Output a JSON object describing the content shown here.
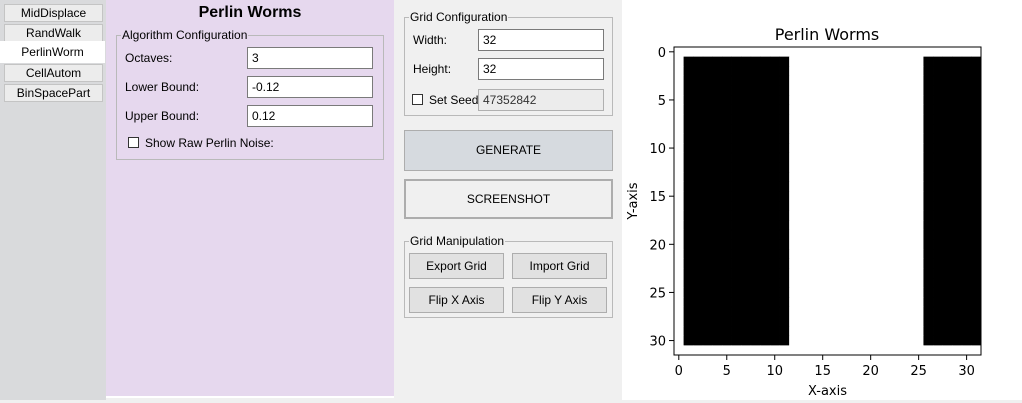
{
  "tabs": [
    {
      "label": "MidDisplace",
      "active": false
    },
    {
      "label": "RandWalk",
      "active": false
    },
    {
      "label": "PerlinWorm",
      "active": true
    },
    {
      "label": "CellAutom",
      "active": false
    },
    {
      "label": "BinSpacePart",
      "active": false
    }
  ],
  "algo_panel": {
    "title": "Perlin Worms",
    "group_legend": "Algorithm Configuration",
    "octaves_label": "Octaves:",
    "octaves_value": "3",
    "lower_label": "Lower Bound:",
    "lower_value": "-0.12",
    "upper_label": "Upper Bound:",
    "upper_value": "0.12",
    "raw_noise_label": "Show Raw Perlin Noise:"
  },
  "grid_config": {
    "legend": "Grid Configuration",
    "width_label": "Width:",
    "width_value": "32",
    "height_label": "Height:",
    "height_value": "32",
    "seed_label": "Set Seed",
    "seed_value": "47352842"
  },
  "actions": {
    "generate_label": "GENERATE",
    "screenshot_label": "SCREENSHOT"
  },
  "grid_manip": {
    "legend": "Grid Manipulation",
    "export_label": "Export Grid",
    "import_label": "Import Grid",
    "flip_x_label": "Flip X Axis",
    "flip_y_label": "Flip Y Axis"
  },
  "chart_data": {
    "type": "heatmap",
    "title": "Perlin Worms",
    "xlabel": "X-axis",
    "ylabel": "Y-axis",
    "xlim": [
      -0.5,
      31.5
    ],
    "ylim": [
      31.5,
      -0.5
    ],
    "xticks": [
      0,
      5,
      10,
      15,
      20,
      25,
      30
    ],
    "yticks": [
      0,
      5,
      10,
      15,
      20,
      25,
      30
    ],
    "colormap": {
      "0": "#000000",
      "1": "#ffffff"
    },
    "grid": [
      "11111111111111111111111111111111",
      "10000000000011111111111111000000",
      "10000000000011111111111111000000",
      "10000000000011111111111111000000",
      "10000000000011111111111111000000",
      "10000000000011111111111111000000",
      "10000000000011111111111111000000",
      "10000000000011111111111111000000",
      "10000000000011111111111111000000",
      "10000000000011111111111111000000",
      "10000000000011111111111111000000",
      "10000000000011111111111111000000",
      "10000000000011111111111111000000",
      "10000000000011111111111111000000",
      "10000000000011111111111111000000",
      "10000000000011111111111111000000",
      "10000000000011111111111111000000",
      "10000000000011111111111111000000",
      "10000000000011111111111111000000",
      "10000000000011111111111111000000",
      "10000000000011111111111111000000",
      "10000000000011111111111111000000",
      "10000000000011111111111111000000",
      "10000000000011111111111111000000",
      "10000000000011111111111111000000",
      "10000000000011111111111111000000",
      "10000000000011111111111111000000",
      "10000000000011111111111111000000",
      "10000000000011111111111111000000",
      "10000000000011111111111111000000",
      "10000000000011111111111111000000",
      "11111111111111111111111111111111"
    ]
  }
}
